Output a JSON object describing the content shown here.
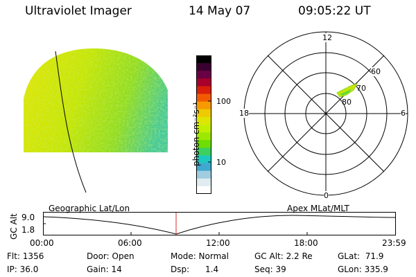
{
  "header": {
    "instrument": "Ultraviolet Imager",
    "date": "14 May 07",
    "time": "09:05:22 UT"
  },
  "colorbar": {
    "unit_label": "photon cm⁻²s⁻¹",
    "ticks": [
      "100",
      "10"
    ],
    "colors": [
      "#000000",
      "#3a0030",
      "#6a0045",
      "#a8002a",
      "#d8200a",
      "#f25a00",
      "#f79a00",
      "#eecb00",
      "#dde600",
      "#c2ef00",
      "#9de800",
      "#6ede00",
      "#3cd060",
      "#1ec8c0",
      "#40a8d0",
      "#a0cce0",
      "#e0ecf0",
      "#ffffff"
    ]
  },
  "polar": {
    "mlt_labels": {
      "top": "12",
      "right": "6",
      "bottom": "0",
      "left": "18"
    },
    "lat_labels": [
      "60",
      "70",
      "80"
    ]
  },
  "orbit": {
    "left_label": "Geographic Lat/Lon",
    "right_label": "Apex MLat/MLT",
    "axis_title": "GC Alt",
    "y_ticks": [
      "9.0",
      "1.8"
    ],
    "x_ticks": [
      "00:00",
      "06:00",
      "12:00",
      "18:00",
      "23:59"
    ],
    "marker_color": "#cc3322"
  },
  "info": {
    "flt": "Flt: 1356",
    "ip": "IP: 36.0",
    "door": "Door: Open",
    "gain": "Gain: 14",
    "mode": "Mode: Normal",
    "dsp": "Dsp:      1.4",
    "gcalt": "GC Alt: 2.2 Re",
    "seq": "Seq: 39",
    "glat": "GLat:  71.9",
    "glon": "GLon: 335.9"
  },
  "image_colors": {
    "base_yellow": "#dde600",
    "green": "#a0e000",
    "cyan": "#30c8b0"
  }
}
